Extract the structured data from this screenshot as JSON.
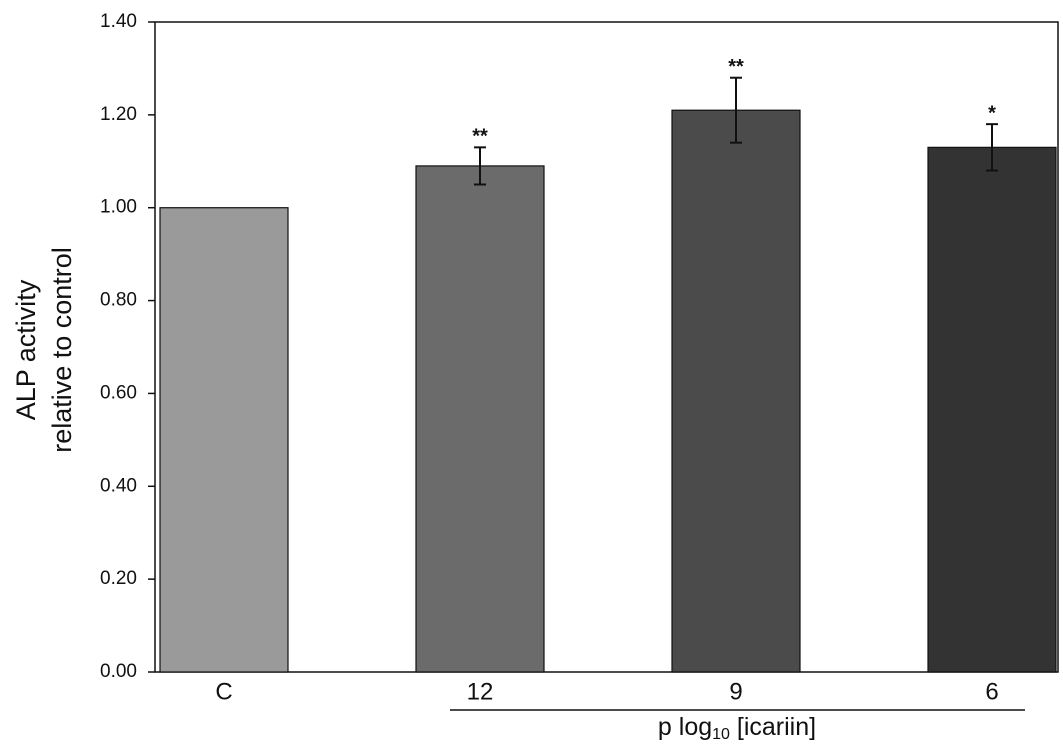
{
  "chart_data": {
    "type": "bar",
    "y_label_lines": [
      "ALP activity",
      "relative to control"
    ],
    "x_label": {
      "prefix": "p log",
      "subscript": "10",
      "suffix": " [icariin]"
    },
    "categories": [
      "C",
      "12",
      "9",
      "6"
    ],
    "values": [
      1.0,
      1.09,
      1.21,
      1.13
    ],
    "errors": [
      null,
      0.04,
      0.07,
      0.05
    ],
    "annotations": [
      null,
      "**",
      "**",
      "*"
    ],
    "colors": [
      "#9a9a9a",
      "#6b6b6b",
      "#4b4b4b",
      "#333333"
    ],
    "ylim": [
      0,
      1.4
    ],
    "yticks": [
      {
        "value": 0,
        "label": "0.00"
      },
      {
        "value": 0.2,
        "label": "0.20"
      },
      {
        "value": 0.4,
        "label": "0.40"
      },
      {
        "value": 0.6,
        "label": "0.60"
      },
      {
        "value": 0.8,
        "label": "0.80"
      },
      {
        "value": 1.0,
        "label": "1.00"
      },
      {
        "value": 1.2,
        "label": "1.20"
      },
      {
        "value": 1.4,
        "label": "1.40"
      }
    ]
  }
}
